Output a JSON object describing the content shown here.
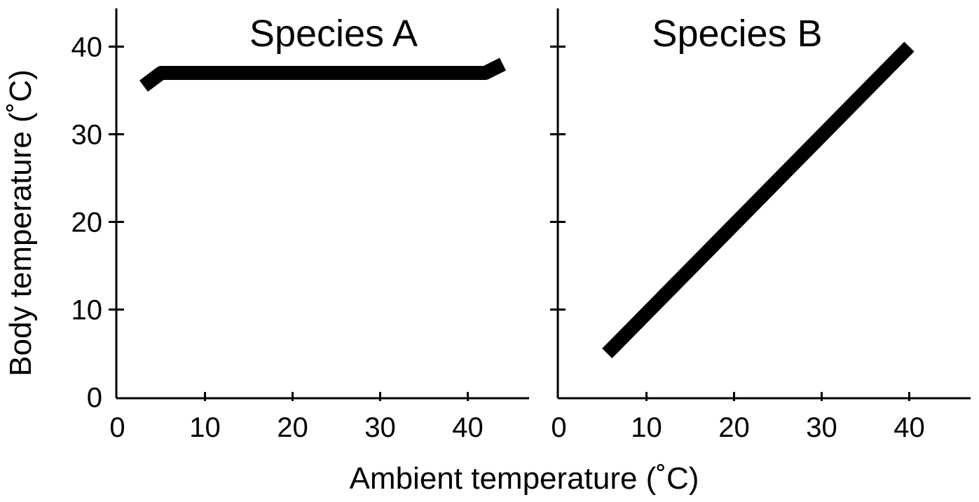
{
  "chart_data": {
    "type": "line",
    "ylabel": "Body temperature (˚C)",
    "xlabel": "Ambient temperature (˚C)",
    "line_color": "#000000",
    "panels": [
      {
        "title": "Species A",
        "xlim": [
          0,
          47
        ],
        "ylim": [
          0,
          45
        ],
        "x_ticks": [
          0,
          10,
          20,
          30,
          40
        ],
        "y_ticks": [
          0,
          10,
          20,
          30,
          40
        ],
        "show_y_tick_labels": true,
        "grid": false,
        "series": [
          {
            "x": [
              3,
              5,
              42,
              44
            ],
            "y": [
              35.5,
              37,
              37,
              38
            ]
          }
        ]
      },
      {
        "title": "Species B",
        "xlim": [
          0,
          47
        ],
        "ylim": [
          0,
          45
        ],
        "x_ticks": [
          0,
          10,
          20,
          30,
          40
        ],
        "y_ticks": [
          0,
          10,
          20,
          30,
          40
        ],
        "show_y_tick_labels": false,
        "grid": false,
        "series": [
          {
            "x": [
              5.5,
              40
            ],
            "y": [
              5,
              40
            ]
          }
        ]
      }
    ]
  }
}
